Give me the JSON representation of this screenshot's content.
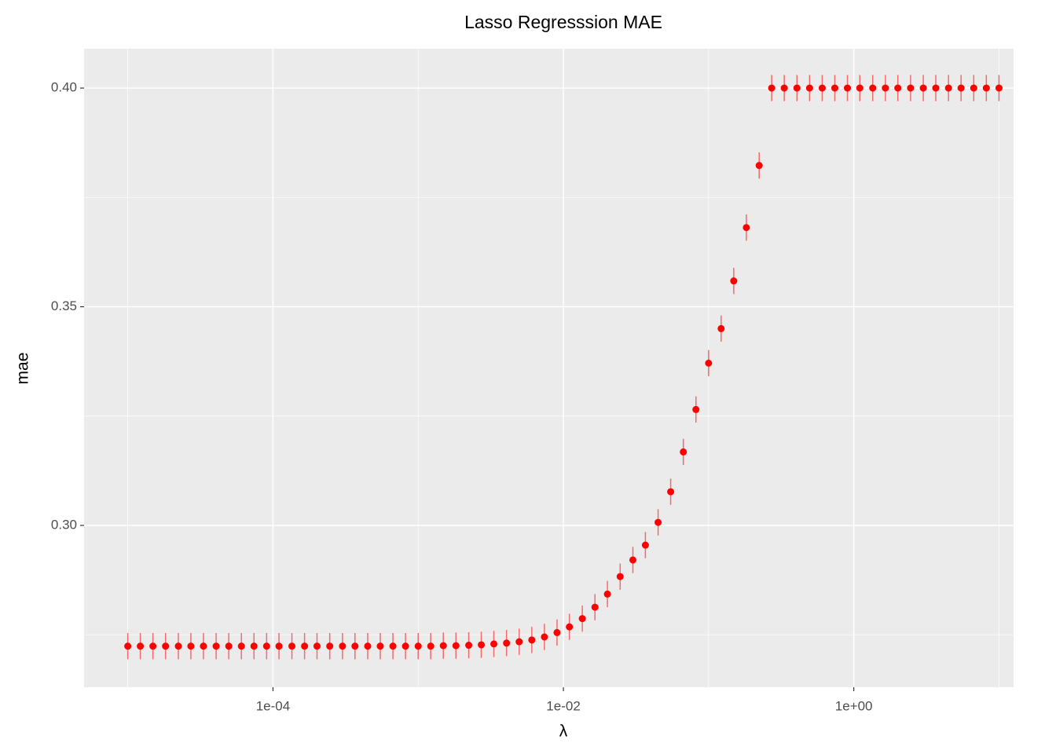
{
  "chart_data": {
    "type": "scatter",
    "title": "Lasso Regresssion MAE",
    "x_label": "λ",
    "y_label": "mae",
    "x": [
      1e-05,
      1.22e-05,
      1.49e-05,
      1.82e-05,
      2.23e-05,
      2.72e-05,
      3.32e-05,
      4.06e-05,
      4.96e-05,
      6.06e-05,
      7.4e-05,
      9.04e-05,
      0.00011,
      0.000135,
      0.000165,
      0.000201,
      0.000246,
      0.000301,
      0.000367,
      0.000449,
      0.000548,
      0.00067,
      0.000818,
      0.001,
      0.00122,
      0.00149,
      0.00182,
      0.00223,
      0.00272,
      0.00332,
      0.00406,
      0.00496,
      0.00606,
      0.0074,
      0.00904,
      0.011,
      0.0135,
      0.0165,
      0.0201,
      0.0246,
      0.0301,
      0.0367,
      0.0449,
      0.0548,
      0.067,
      0.0818,
      0.1,
      0.122,
      0.149,
      0.182,
      0.223,
      0.272,
      0.332,
      0.406,
      0.496,
      0.606,
      0.74,
      0.904,
      1.1,
      1.35,
      1.65,
      2.01,
      2.46,
      3.01,
      3.67,
      4.49,
      5.48,
      6.7,
      8.18,
      10
    ],
    "values": [
      0.2724,
      0.2724,
      0.2724,
      0.2724,
      0.2724,
      0.2724,
      0.2724,
      0.2724,
      0.2724,
      0.2724,
      0.2724,
      0.2724,
      0.2724,
      0.2724,
      0.2724,
      0.2724,
      0.2724,
      0.2724,
      0.2724,
      0.2724,
      0.2724,
      0.2724,
      0.2724,
      0.2724,
      0.2724,
      0.2725,
      0.2725,
      0.2726,
      0.2727,
      0.2729,
      0.2731,
      0.2734,
      0.2738,
      0.2745,
      0.2755,
      0.2768,
      0.2787,
      0.2813,
      0.2843,
      0.2883,
      0.2921,
      0.2955,
      0.3007,
      0.3077,
      0.3168,
      0.3265,
      0.3371,
      0.345,
      0.3559,
      0.3681,
      0.3823,
      0.4,
      0.4,
      0.4,
      0.4,
      0.4,
      0.4,
      0.4,
      0.4,
      0.4,
      0.4,
      0.4,
      0.4,
      0.4,
      0.4,
      0.4,
      0.4,
      0.4,
      0.4,
      0.4
    ],
    "errors": [
      0.003,
      0.003,
      0.003,
      0.003,
      0.003,
      0.003,
      0.003,
      0.003,
      0.003,
      0.003,
      0.003,
      0.003,
      0.003,
      0.003,
      0.003,
      0.003,
      0.003,
      0.003,
      0.003,
      0.003,
      0.003,
      0.003,
      0.003,
      0.003,
      0.003,
      0.003,
      0.003,
      0.003,
      0.003,
      0.003,
      0.003,
      0.003,
      0.003,
      0.003,
      0.003,
      0.003,
      0.003,
      0.003,
      0.003,
      0.003,
      0.003,
      0.003,
      0.003,
      0.003,
      0.003,
      0.003,
      0.003,
      0.003,
      0.003,
      0.003,
      0.003,
      0.003,
      0.003,
      0.003,
      0.003,
      0.003,
      0.003,
      0.003,
      0.003,
      0.003,
      0.003,
      0.003,
      0.003,
      0.003,
      0.003,
      0.003,
      0.003,
      0.003,
      0.003,
      0.003
    ],
    "color": "#ff0000",
    "error_color": "#f26b6b",
    "x_scale": "log",
    "xlim": [
      5e-06,
      12.6
    ],
    "xticks": [
      {
        "value": 0.0001,
        "label": "1e-04"
      },
      {
        "value": 0.01,
        "label": "1e-02"
      },
      {
        "value": 1,
        "label": "1e+00"
      }
    ],
    "xminor": [
      1e-05,
      0.001,
      0.1,
      10
    ],
    "ylim": [
      0.263,
      0.409
    ],
    "yticks": [
      {
        "value": 0.3,
        "label": "0.30"
      },
      {
        "value": 0.35,
        "label": "0.35"
      },
      {
        "value": 0.4,
        "label": "0.40"
      }
    ],
    "yminor": [
      0.275,
      0.325,
      0.375
    ],
    "grid": true
  }
}
